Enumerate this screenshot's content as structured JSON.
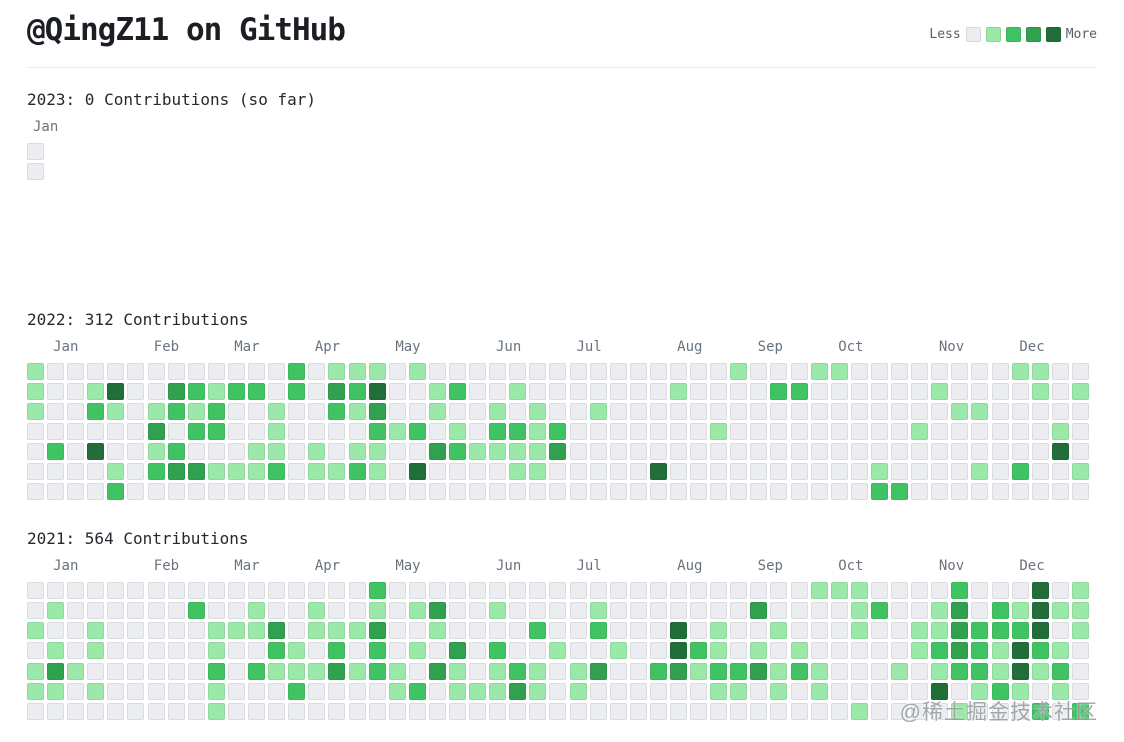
{
  "header": {
    "title": "@QingZ11 on GitHub"
  },
  "legend": {
    "less_label": "Less",
    "more_label": "More",
    "levels": [
      "#ebedf0",
      "#9be9a8",
      "#40c463",
      "#30a14e",
      "#216e39"
    ]
  },
  "watermark": "@稀土掘金技术社区",
  "chart_data": [
    {
      "type": "heatmap",
      "title": "2023: 0 Contributions (so far)",
      "year": "2023",
      "total_contributions": 0,
      "months": [
        {
          "label": "Jan",
          "col": 0
        }
      ],
      "weeks": [
        [
          0,
          0
        ]
      ]
    },
    {
      "type": "heatmap",
      "title": "2022: 312 Contributions",
      "year": "2022",
      "total_contributions": 312,
      "months": [
        {
          "label": "Jan",
          "col": 1
        },
        {
          "label": "Feb",
          "col": 6
        },
        {
          "label": "Mar",
          "col": 10
        },
        {
          "label": "Apr",
          "col": 14
        },
        {
          "label": "May",
          "col": 18
        },
        {
          "label": "Jun",
          "col": 23
        },
        {
          "label": "Jul",
          "col": 27
        },
        {
          "label": "Aug",
          "col": 32
        },
        {
          "label": "Sep",
          "col": 36
        },
        {
          "label": "Oct",
          "col": 40
        },
        {
          "label": "Nov",
          "col": 45
        },
        {
          "label": "Dec",
          "col": 49
        }
      ],
      "weeks": [
        [
          1,
          1,
          1,
          0,
          0,
          0,
          0
        ],
        [
          0,
          0,
          0,
          0,
          2,
          0,
          0
        ],
        [
          0,
          0,
          0,
          0,
          0,
          0,
          0
        ],
        [
          0,
          1,
          2,
          0,
          4,
          0,
          0
        ],
        [
          0,
          4,
          1,
          0,
          0,
          1,
          2
        ],
        [
          0,
          0,
          0,
          0,
          0,
          0,
          0
        ],
        [
          0,
          0,
          1,
          3,
          1,
          2,
          0
        ],
        [
          0,
          3,
          2,
          0,
          2,
          3,
          0
        ],
        [
          0,
          2,
          1,
          2,
          0,
          3,
          0
        ],
        [
          0,
          1,
          2,
          2,
          0,
          1,
          0
        ],
        [
          0,
          2,
          0,
          0,
          0,
          1,
          0
        ],
        [
          0,
          2,
          0,
          0,
          1,
          1,
          0
        ],
        [
          0,
          0,
          1,
          1,
          1,
          2,
          0
        ],
        [
          2,
          2,
          0,
          0,
          0,
          0,
          0
        ],
        [
          0,
          0,
          0,
          0,
          1,
          1,
          0
        ],
        [
          1,
          3,
          2,
          0,
          0,
          1,
          0
        ],
        [
          1,
          2,
          1,
          0,
          1,
          2,
          0
        ],
        [
          1,
          4,
          3,
          2,
          1,
          1,
          0
        ],
        [
          0,
          0,
          0,
          1,
          0,
          0,
          0
        ],
        [
          1,
          0,
          0,
          2,
          0,
          4,
          0
        ],
        [
          0,
          1,
          1,
          0,
          3,
          0,
          0
        ],
        [
          0,
          2,
          0,
          1,
          2,
          0,
          0
        ],
        [
          0,
          0,
          0,
          0,
          1,
          0,
          0
        ],
        [
          0,
          0,
          1,
          2,
          1,
          0,
          0
        ],
        [
          0,
          1,
          0,
          2,
          1,
          1,
          0
        ],
        [
          0,
          0,
          1,
          1,
          1,
          1,
          0
        ],
        [
          0,
          0,
          0,
          2,
          3,
          0,
          0
        ],
        [
          0,
          0,
          0,
          0,
          0,
          0,
          0
        ],
        [
          0,
          0,
          1,
          0,
          0,
          0,
          0
        ],
        [
          0,
          0,
          0,
          0,
          0,
          0,
          0
        ],
        [
          0,
          0,
          0,
          0,
          0,
          0,
          0
        ],
        [
          0,
          0,
          0,
          0,
          0,
          4,
          0
        ],
        [
          0,
          1,
          0,
          0,
          0,
          0,
          0
        ],
        [
          0,
          0,
          0,
          0,
          0,
          0,
          0
        ],
        [
          0,
          0,
          0,
          1,
          0,
          0,
          0
        ],
        [
          1,
          0,
          0,
          0,
          0,
          0,
          0
        ],
        [
          0,
          0,
          0,
          0,
          0,
          0,
          0
        ],
        [
          0,
          2,
          0,
          0,
          0,
          0,
          0
        ],
        [
          0,
          2,
          0,
          0,
          0,
          0,
          0
        ],
        [
          1,
          0,
          0,
          0,
          0,
          0,
          0
        ],
        [
          1,
          0,
          0,
          0,
          0,
          0,
          0
        ],
        [
          0,
          0,
          0,
          0,
          0,
          0,
          0
        ],
        [
          0,
          0,
          0,
          0,
          0,
          1,
          2
        ],
        [
          0,
          0,
          0,
          0,
          0,
          0,
          2
        ],
        [
          0,
          0,
          0,
          1,
          0,
          0,
          0
        ],
        [
          0,
          1,
          0,
          0,
          0,
          0,
          0
        ],
        [
          0,
          0,
          1,
          0,
          0,
          0,
          0
        ],
        [
          0,
          0,
          1,
          0,
          0,
          1,
          0
        ],
        [
          0,
          0,
          0,
          0,
          0,
          0,
          0
        ],
        [
          1,
          0,
          0,
          0,
          0,
          2,
          0
        ],
        [
          1,
          1,
          0,
          0,
          0,
          0,
          0
        ],
        [
          0,
          0,
          0,
          1,
          4,
          0,
          0
        ],
        [
          0,
          1,
          0,
          0,
          0,
          1,
          0
        ]
      ]
    },
    {
      "type": "heatmap",
      "title": "2021: 564 Contributions",
      "year": "2021",
      "total_contributions": 564,
      "months": [
        {
          "label": "Jan",
          "col": 1
        },
        {
          "label": "Feb",
          "col": 6
        },
        {
          "label": "Mar",
          "col": 10
        },
        {
          "label": "Apr",
          "col": 14
        },
        {
          "label": "May",
          "col": 18
        },
        {
          "label": "Jun",
          "col": 23
        },
        {
          "label": "Jul",
          "col": 27
        },
        {
          "label": "Aug",
          "col": 32
        },
        {
          "label": "Sep",
          "col": 36
        },
        {
          "label": "Oct",
          "col": 40
        },
        {
          "label": "Nov",
          "col": 45
        },
        {
          "label": "Dec",
          "col": 49
        }
      ],
      "weeks": [
        [
          0,
          0,
          1,
          0,
          1,
          1,
          0
        ],
        [
          0,
          1,
          0,
          1,
          3,
          1,
          0
        ],
        [
          0,
          0,
          0,
          0,
          1,
          0,
          0
        ],
        [
          0,
          0,
          1,
          1,
          0,
          1,
          0
        ],
        [
          0,
          0,
          0,
          0,
          0,
          0,
          0
        ],
        [
          0,
          0,
          0,
          0,
          0,
          0,
          0
        ],
        [
          0,
          0,
          0,
          0,
          0,
          0,
          0
        ],
        [
          0,
          0,
          0,
          0,
          0,
          0,
          0
        ],
        [
          0,
          2,
          0,
          0,
          0,
          0,
          0
        ],
        [
          0,
          0,
          1,
          1,
          2,
          1,
          1
        ],
        [
          0,
          0,
          1,
          0,
          0,
          0,
          0
        ],
        [
          0,
          1,
          1,
          0,
          2,
          0,
          0
        ],
        [
          0,
          0,
          3,
          2,
          1,
          0,
          0
        ],
        [
          0,
          0,
          0,
          1,
          1,
          2,
          0
        ],
        [
          0,
          1,
          1,
          0,
          1,
          0,
          0
        ],
        [
          0,
          0,
          1,
          2,
          3,
          0,
          0
        ],
        [
          0,
          0,
          1,
          0,
          1,
          0,
          0
        ],
        [
          2,
          1,
          3,
          2,
          2,
          0,
          0
        ],
        [
          0,
          0,
          0,
          0,
          1,
          1,
          0
        ],
        [
          0,
          1,
          0,
          1,
          0,
          2,
          0
        ],
        [
          0,
          3,
          1,
          0,
          3,
          0,
          0
        ],
        [
          0,
          0,
          0,
          3,
          1,
          1,
          0
        ],
        [
          0,
          0,
          0,
          0,
          0,
          1,
          0
        ],
        [
          0,
          1,
          0,
          2,
          1,
          1,
          0
        ],
        [
          0,
          0,
          0,
          0,
          2,
          3,
          0
        ],
        [
          0,
          0,
          2,
          0,
          1,
          1,
          0
        ],
        [
          0,
          0,
          0,
          1,
          0,
          0,
          0
        ],
        [
          0,
          0,
          0,
          0,
          1,
          1,
          0
        ],
        [
          0,
          1,
          2,
          0,
          3,
          0,
          0
        ],
        [
          0,
          0,
          0,
          1,
          0,
          0,
          0
        ],
        [
          0,
          0,
          0,
          0,
          0,
          0,
          0
        ],
        [
          0,
          0,
          0,
          0,
          2,
          0,
          0
        ],
        [
          0,
          0,
          4,
          4,
          3,
          0,
          0
        ],
        [
          0,
          0,
          0,
          2,
          1,
          0,
          0
        ],
        [
          0,
          0,
          1,
          1,
          2,
          1,
          0
        ],
        [
          0,
          0,
          0,
          0,
          2,
          1,
          0
        ],
        [
          0,
          3,
          0,
          1,
          3,
          0,
          0
        ],
        [
          0,
          0,
          1,
          0,
          1,
          1,
          0
        ],
        [
          0,
          0,
          0,
          1,
          2,
          0,
          0
        ],
        [
          1,
          0,
          0,
          0,
          1,
          1,
          0
        ],
        [
          1,
          0,
          0,
          0,
          0,
          0,
          0
        ],
        [
          1,
          1,
          1,
          0,
          0,
          0,
          1
        ],
        [
          0,
          2,
          0,
          0,
          0,
          0,
          0
        ],
        [
          0,
          0,
          0,
          0,
          1,
          0,
          0
        ],
        [
          0,
          0,
          1,
          1,
          0,
          0,
          0
        ],
        [
          0,
          1,
          1,
          2,
          1,
          4,
          0
        ],
        [
          2,
          3,
          3,
          3,
          2,
          0,
          1
        ],
        [
          0,
          0,
          2,
          2,
          2,
          1,
          0
        ],
        [
          0,
          2,
          2,
          1,
          1,
          2,
          0
        ],
        [
          0,
          1,
          2,
          4,
          4,
          1,
          0
        ],
        [
          4,
          4,
          4,
          2,
          1,
          0,
          2
        ],
        [
          0,
          1,
          0,
          1,
          2,
          1,
          0
        ],
        [
          1,
          1,
          1,
          0,
          0,
          0,
          2
        ]
      ]
    }
  ]
}
